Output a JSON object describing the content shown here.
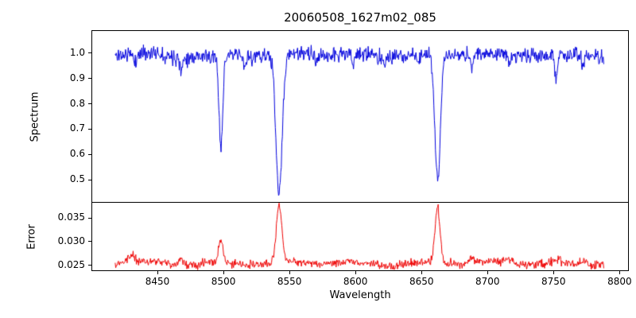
{
  "chart_data": [
    {
      "type": "line",
      "title": "20060508_1627m02_085",
      "xlabel": "Wavelength",
      "ylabel": "Spectrum",
      "x_range": [
        8418,
        8788
      ],
      "xlim": [
        8400,
        8807
      ],
      "ylim": [
        0.41,
        1.09
      ],
      "xticks": [
        8450,
        8500,
        8550,
        8600,
        8650,
        8700,
        8750,
        8800
      ],
      "xtick_labels": [
        "8450",
        "8500",
        "8550",
        "8600",
        "8650",
        "8700",
        "8750",
        "8800"
      ],
      "yticks": [
        0.5,
        0.6,
        0.7,
        0.8,
        0.9,
        1.0
      ],
      "ytick_labels": [
        "0.5",
        "0.6",
        "0.7",
        "0.8",
        "0.9",
        "1.0"
      ],
      "grid": false,
      "legend": "none",
      "absorption_minima": [
        {
          "x": 8498,
          "y": 0.64
        },
        {
          "x": 8542,
          "y": 0.44
        },
        {
          "x": 8662,
          "y": 0.49
        }
      ],
      "series": [
        {
          "name": "spectrum",
          "color": "#0000dd",
          "base": 0.995,
          "noise_sigma": 0.015,
          "wiggle": 0.006,
          "seed": 11,
          "n_points": 900,
          "features": [
            {
              "center": 8498.0,
              "width": 1.5,
              "amp": -0.355
            },
            {
              "center": 8542.1,
              "width": 2.4,
              "amp": -0.56
            },
            {
              "center": 8662.1,
              "width": 2.1,
              "amp": -0.505
            },
            {
              "center": 8433.0,
              "width": 0.9,
              "amp": -0.045
            },
            {
              "center": 8468.0,
              "width": 1.0,
              "amp": -0.06
            },
            {
              "center": 8490.0,
              "width": 0.8,
              "amp": -0.035
            },
            {
              "center": 8516.0,
              "width": 0.9,
              "amp": -0.045
            },
            {
              "center": 8570.0,
              "width": 0.8,
              "amp": -0.035
            },
            {
              "center": 8598.0,
              "width": 0.9,
              "amp": -0.04
            },
            {
              "center": 8622.0,
              "width": 0.8,
              "amp": -0.035
            },
            {
              "center": 8648.0,
              "width": 0.8,
              "amp": -0.03
            },
            {
              "center": 8688.0,
              "width": 1.0,
              "amp": -0.05
            },
            {
              "center": 8717.0,
              "width": 0.9,
              "amp": -0.04
            },
            {
              "center": 8752.0,
              "width": 1.1,
              "amp": -0.095
            },
            {
              "center": 8772.0,
              "width": 0.9,
              "amp": -0.05
            }
          ]
        }
      ]
    },
    {
      "type": "line",
      "title": "",
      "xlabel": "Wavelength",
      "ylabel": "Error",
      "x_range": [
        8418,
        8788
      ],
      "xlim": [
        8400,
        8807
      ],
      "ylim": [
        0.0238,
        0.0382
      ],
      "xticks": [
        8450,
        8500,
        8550,
        8600,
        8650,
        8700,
        8750,
        8800
      ],
      "xtick_labels": [
        "8450",
        "8500",
        "8550",
        "8600",
        "8650",
        "8700",
        "8750",
        "8800"
      ],
      "yticks": [
        0.025,
        0.03,
        0.035
      ],
      "ytick_labels": [
        "0.025",
        "0.030",
        "0.035"
      ],
      "grid": false,
      "legend": "none",
      "error_baseline": 0.025,
      "error_peaks": [
        {
          "x": 8498,
          "y": 0.03
        },
        {
          "x": 8542,
          "y": 0.037
        },
        {
          "x": 8662,
          "y": 0.037
        }
      ],
      "series": [
        {
          "name": "error",
          "color": "#ee0000",
          "base": 0.0253,
          "noise_sigma": 0.00045,
          "wiggle": 0.0003,
          "seed": 99,
          "n_points": 900,
          "features": [
            {
              "center": 8498.0,
              "width": 1.7,
              "amp": 0.005
            },
            {
              "center": 8542.1,
              "width": 2.1,
              "amp": 0.012
            },
            {
              "center": 8662.1,
              "width": 1.9,
              "amp": 0.0115
            },
            {
              "center": 8430.0,
              "width": 3.0,
              "amp": 0.0013
            },
            {
              "center": 8468.0,
              "width": 2.5,
              "amp": 0.0009
            },
            {
              "center": 8688.0,
              "width": 2.5,
              "amp": 0.0011
            },
            {
              "center": 8717.0,
              "width": 2.0,
              "amp": 0.0007
            },
            {
              "center": 8752.0,
              "width": 3.0,
              "amp": 0.0009
            },
            {
              "center": 8772.0,
              "width": 2.0,
              "amp": 0.0008
            }
          ]
        }
      ]
    }
  ]
}
